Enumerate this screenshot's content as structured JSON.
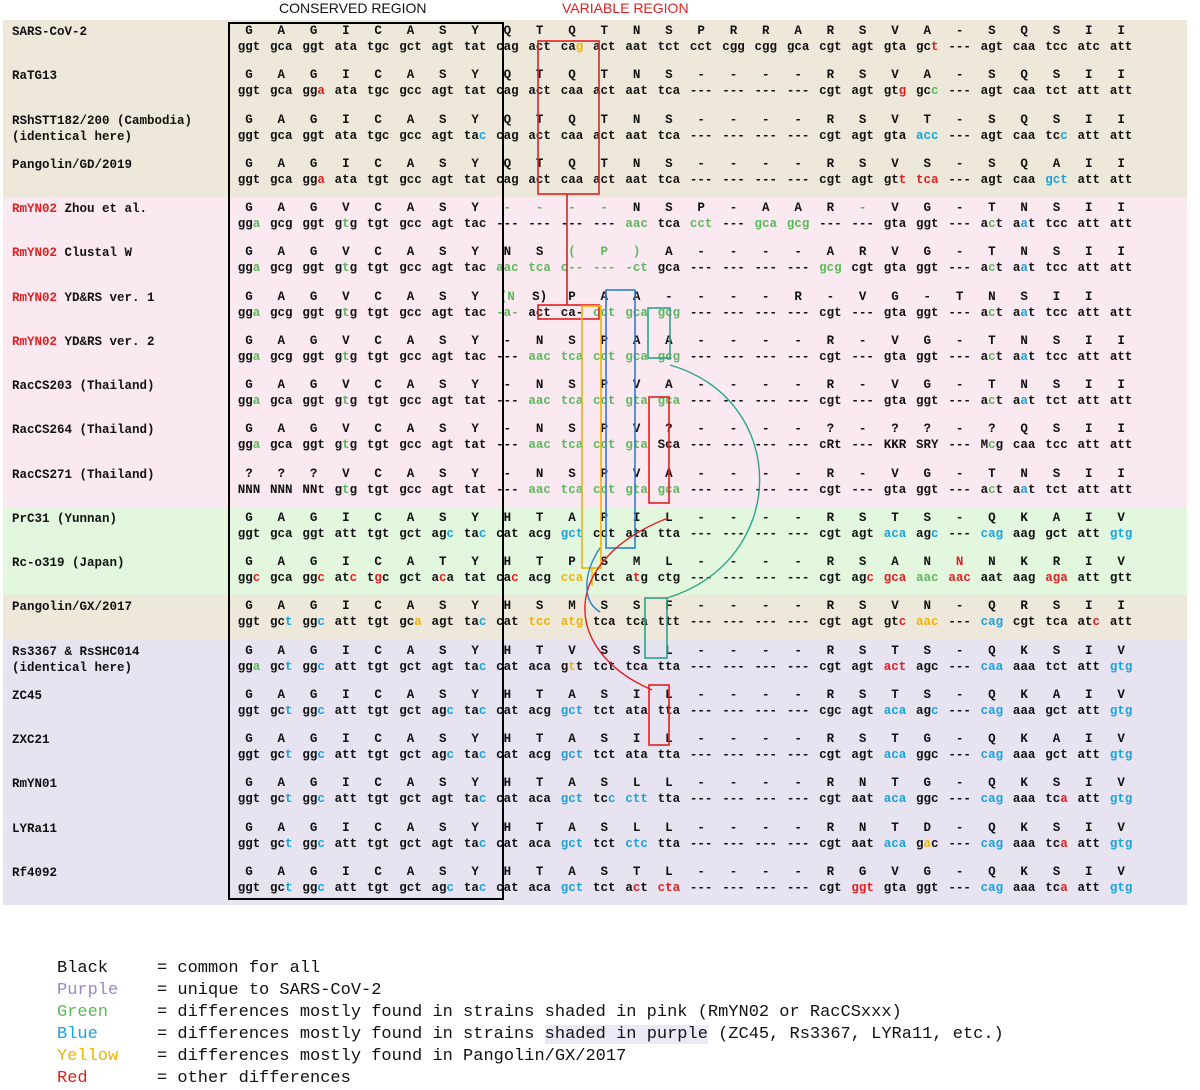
{
  "titles": {
    "conserved": "CONSERVED REGION",
    "variable": "VARIABLE REGION"
  },
  "colors": {
    "black": "#111111",
    "purple": "#9a86c8",
    "green": "#5cb85c",
    "blue": "#1aa3dc",
    "yellow": "#f0b400",
    "red": "#e02020",
    "band_beige": "#ede8d9",
    "band_pink": "#fbe9f1",
    "band_green": "#e3f7df",
    "band_purple": "#e7e3f1",
    "box_red": "#e02020",
    "box_yellow": "#f0b400",
    "box_blue": "#2b7fd0",
    "box_teal": "#2aa489"
  },
  "rows": [
    {
      "label": "SARS-CoV-2",
      "band": "beige",
      "aa": "G A G I C A S Y Q T Q T N S P R R A R S V A - S Q S I I",
      "nt": "ggt gca ggt ata tgc gct agt tat cag act cag act aat tct cct cgg cgg gca cgt agt gta gct --- agt caa tcc atc att",
      "ntc": "- - - - - - - - - - y - - - p p p p - - - r - - - - - - -",
      "ntm": "- - - - - - - - - - 2 - - - - - - - - - - 2 - - - - 2 2 -"
    },
    {
      "label": "RaTG13",
      "band": "beige",
      "aa": "G A G I C A S Y Q T Q T N S - - - - R S V A - S Q S I I",
      "nt": "ggt gca gga ata tgc gcc agt tat cag act caa act aat tca --- --- --- --- cgt agt gtg gcc --- agt caa tct att att",
      "ntc": "- - r - - - - - - - - - - - - - - - - - r g - - - - - -",
      "ntm": "- - 2 - - - - - - - - - - - - - - - - - 2 2 - - - - - -"
    },
    {
      "label": "RShSTT182/200 (Cambodia)\n(identical here)",
      "band": "beige",
      "aa": "G A G I C A S Y Q T Q T N S - - - - R S V T - S Q S I I",
      "nt": "ggt gca ggt ata tgc gcc agt tac cag act caa act aat tca --- --- --- --- cgt agt gta acc --- agt caa tcc att att",
      "ntc": "- - - - - - - b - - - - - - - - - - - - - b - - - b - -",
      "ntm": "- - - - - - - 2 - - - - - - - - - - - - - 0 - - - 2 - -"
    },
    {
      "label": "Pangolin/GD/2019",
      "band": "beige",
      "aa": "G A G I C A S Y Q T Q T N S - - - - R S V S - S Q A I I",
      "nt": "ggt gca gga ata tgt gcc agt tat cag act caa act aat tca --- --- --- --- cgt agt gtt tca --- agt caa gct att att",
      "ntc": "- - r - - - - - - - - - - - - - - - - - r r - - - b - -",
      "ntm": "- - 2 - - - - - - - - - - - - - - - - - 2 0 - - - 0 - -"
    },
    {
      "label": "RmYN02 Zhou et al.",
      "labelRed": "RmYN02",
      "band": "pink",
      "aa": "G A G V C A S Y - - - - N S P - A A R - V G - T N S I I",
      "aac": "- - - - - - - - g g g g - - - - - - - g - - - - - - - -",
      "nt": "gga gcg ggt gtg tgt gcc agt tac --- --- --- --- aac tca cct --- gca gcg --- --- gta ggt --- act aat tcc att att",
      "ntc": "g - - g - - - - - - - - g - g - g g - - - - - g b - - -",
      "ntm": "2 - - 1 - - - - - - - - 0 - 0 - 0 0 - - - - - 1 1 - - -"
    },
    {
      "label": "RmYN02 Clustal W",
      "labelRed": "RmYN02",
      "band": "pink",
      "aa": "G A G V C A S Y N S ( P ) A - - - - A R V G - T N S I I",
      "aac": "- - - - - - - - - - g g g - - - - - - - - - - - - - - -",
      "nt": "gga gcg ggt gtg tgt gcc agt tac aac tca c-- --- -ct gca --- --- --- --- gcg cgt gta ggt --- act aat tcc att att",
      "ntc": "g - - g - - - - g g g g g - - - - - g - - - - g b - - -",
      "ntm": "2 - - 1 - - - - 0 0 0 0 0 - - - - - 0 - - - - 1 1 - - -"
    },
    {
      "label": "RmYN02 YD&RS ver. 1",
      "labelRed": "RmYN02",
      "band": "pink",
      "aa": "G A G V C A S Y (N S) P A A - - - - R - V G - T N S I I",
      "aac": "- - - - - - - - g - - - - - - - - - - - - - - - - - - -",
      "nt": "gga gcg ggt gtg tgt gcc agt tac -a- act ca- cct gca gcg --- --- --- --- cgt --- gta ggt --- act aat tcc att att",
      "ntc": "g - - g - - - - g - - g g g - - - - - - - - - g b - - -",
      "ntm": "2 - - 1 - - - - 0 - - 0 0 0 - - - - - - - - - 1 1 - - -"
    },
    {
      "label": "RmYN02 YD&RS ver. 2",
      "labelRed": "RmYN02",
      "band": "pink",
      "aa": "G A G V C A S Y - N S P A A - - - - R - V G - T N S I I",
      "nt": "gga gcg ggt gtg tgt gcc agt tac --- aac tca cct gca gcg --- --- --- --- cgt --- gta ggt --- act aat tcc att att",
      "ntc": "g - - g - - - - - g g g g g - - - - - - - - - g b - - -",
      "ntm": "2 - - 1 - - - - - 0 0 0 0 0 - - - - - - - - - 1 1 - - -"
    },
    {
      "label": "RacCS203 (Thailand)",
      "band": "pink",
      "aa": "G A G V C A S Y - N S P V A - - - - R - V G - T N S I I",
      "nt": "gga gca ggt gtg tgt gcc agt tat --- aac tca cct gta gca --- --- --- --- cgt --- gta ggt --- act aat tct att att",
      "ntc": "g - - g - - - - - g g g g g - - - - - - - - - g b - - -",
      "ntm": "2 - - 1 - - - - - 0 0 0 0 0 - - - - - - - - - 1 1 - - -"
    },
    {
      "label": "RacCS264 (Thailand)",
      "band": "pink",
      "aa": "G A G V C A S Y - N S P V ? - - - - ? - ? ? - ? Q S I I",
      "nt": "gga gca ggt gtg tgt gcc agt tat --- aac tca cct gta Sca --- --- --- --- cRt --- KKR SRY --- Mcg caa tcc att att",
      "ntc": "g - - g - - - - - g g g g - - - - - - - - - - g - - - -",
      "ntm": "2 - - 1 - - - - - 0 0 0 0 - - - - - - - - - - 1 - - - -"
    },
    {
      "label": "RacCS271 (Thailand)",
      "band": "pink",
      "aa": "? ? ? V C A S Y - N S P V A - - - - R - V G - T N S I I",
      "nt": "NNN NNN NNt gtg tgt gcc agt tat --- aac tca cct gta gca --- --- --- --- cgt --- gta ggt --- act aat tct att att",
      "ntc": "- - - g - - - - - g g g g g - - - - - - - - - g b - - -",
      "ntm": "- - - 1 - - - - - 0 0 0 0 0 - - - - - - - - - 1 1 - - -"
    },
    {
      "label": "PrC31 (Yunnan)",
      "band": "green",
      "aa": "G A G I C A S Y H T A P I L - - - - R S T S - Q K A I V",
      "nt": "ggt gca ggt att tgt gct agc tac cat acg gct cct ata tta --- --- --- --- cgt agt aca agc --- cag aag gct att gtg",
      "ntc": "- - - - - - b b - - b - - - - - - - - - b b - b - - - b",
      "ntm": "- - - - - - 2 2 - - 0 - - - - - - - - - 0 2 - 0 - - - 0"
    },
    {
      "label": "Rc-o319 (Japan)",
      "band": "green",
      "aa": "G A G I C A T Y H T P S M L - - - - R S A N N N K R I V",
      "aac": "- - - - - - - - - - - - - - - - - - - - - - r - - - - -",
      "nt": "ggc gca ggc atc tgc gct aca tat cac acg cca tct atg ctg --- --- --- --- cgt agc gca aac aac aat aag aga att gtt",
      "ntc": "r - r r r - r - r - y - r - - - - - - r r g r - - r - -",
      "ntm": "2 - 2 2 1 - 1 - 2 - 0 - 1 - - - - - - 2 0 0 0 - - 0 - -"
    },
    {
      "label": "Pangolin/GX/2017",
      "band": "beige",
      "aa": "G A G I C A S Y H S M S S F - - - - R S V N - Q R S I I",
      "nt": "ggt gct ggc att tgt gca agt tac cat tcc atg tca tca ttt --- --- --- --- cgt agt gtc aac --- cag cgt tca atc att",
      "ntc": "- b b - - y - b - y y - - - - - - - - - r y - b - - r -",
      "ntm": "- 2 2 - - 2 - 2 - 0 0 - - - - - - - - - 2 0 - 0 - - 2 -"
    },
    {
      "label": "Rs3367 & RsSHC014\n(identical here)",
      "band": "purple",
      "aa": "G A G I C A S Y H T V S S L - - - - R S T S - Q K S I V",
      "nt": "gga gct ggc att tgt gct agt tac cat aca gtt tct tca tta --- --- --- --- cgt agt act agc --- caa aaa tct att gtg",
      "ntc": "g b b - - - - b - - y - - - - - - - - - r - - b - - - b",
      "ntm": "2 2 2 - - - - 2 - - 1 - - - - - - - - - 0 - - 0 - - - 0"
    },
    {
      "label": "ZC45",
      "band": "purple",
      "aa": "G A G I C A S Y H T A S I L - - - - R S T S - Q K A I V",
      "nt": "ggt gct ggc att tgt gct agc tac cat acg gct tct ata tta --- --- --- --- cgc agt aca agc --- cag aaa gct att gtg",
      "ntc": "- b b - - - b b - - b - - - - - - - - - b b - b - - - b",
      "ntm": "- 2 2 - - - 2 2 - - 0 - - - - - - - - - 0 2 - 0 - - - 0"
    },
    {
      "label": "ZXC21",
      "band": "purple",
      "aa": "G A G I C A S Y H T A S I L - - - - R S T G - Q K A I V",
      "nt": "ggt gct ggc att tgt gct agc tac cat acg gct tct ata tta --- --- --- --- cgt agt aca ggc --- cag aaa gct att gtg",
      "ntc": "- b b - - - b b - - b - - - - - - - - - b - - b - - - b",
      "ntm": "- 2 2 - - - 2 2 - - 0 - - - - - - - - - 0 - - 0 - - - 0"
    },
    {
      "label": "RmYN01",
      "band": "purple",
      "aa": "G A G I C A S Y H T A S L L - - - - R N T G - Q K S I V",
      "nt": "ggt gct ggc att tgt gct agt tac cat aca gct tcc ctt tta --- --- --- --- cgt aat aca ggc --- cag aaa tca att gtg",
      "ntc": "- b b - - - - b - - b b b - - - - - - - b - - b - r - b",
      "ntm": "- 2 2 - - - - 2 - - 0 2 0 - - - - - - - 0 - - 0 - 2 - 0"
    },
    {
      "label": "LYRa11",
      "band": "purple",
      "aa": "G A G I C A S Y H T A S L L - - - - R N T D - Q K S I V",
      "nt": "ggt gct ggc att tgt gct agt tac cat aca gct tct ctc tta --- --- --- --- cgt aat aca gac --- cag aaa tca att gtg",
      "ntc": "- b b - - - - b - - b - b - - - - - - - b y - b - r - b",
      "ntm": "- 2 2 - - - - 2 - - 0 - 0 - - - - - - - 0 1 - 0 - 2 - 0"
    },
    {
      "label": "Rf4092",
      "band": "purple",
      "aa": "G A G I C A S Y H T A S T L - - - - R G V G - Q K S I V",
      "nt": "ggt gct ggc att tgt gct agc tac cat aca gct tct act cta --- --- --- --- cgt ggt gta ggt --- cag aaa tca att gtg",
      "ntc": "- b b - - - b b - - b - r r - - - - - r - - - b - r - b",
      "ntm": "- 2 2 - - - 2 2 - - 0 - 1 0 - - - - - 0 - - - 0 - 2 - 0"
    }
  ],
  "legend": [
    {
      "term": "Black",
      "color": "black",
      "text": "= common for all"
    },
    {
      "term": "Purple",
      "color": "purple",
      "text": "= unique to SARS-CoV-2"
    },
    {
      "term": "Green",
      "color": "green",
      "text": "= differences mostly found in strains shaded in pink (RmYN02 or RacCSxxx)"
    },
    {
      "term": "Blue",
      "color": "blue",
      "text_pre": "= differences mostly found in strains ",
      "text_hl": "shaded in purple",
      "text_post": " (ZC45, Rs3367, LYRa11, etc.)"
    },
    {
      "term": "Yellow",
      "color": "yellow",
      "text": "= differences mostly found in Pangolin/GX/2017"
    },
    {
      "term": "Red",
      "color": "red",
      "text": "= other differences"
    }
  ]
}
